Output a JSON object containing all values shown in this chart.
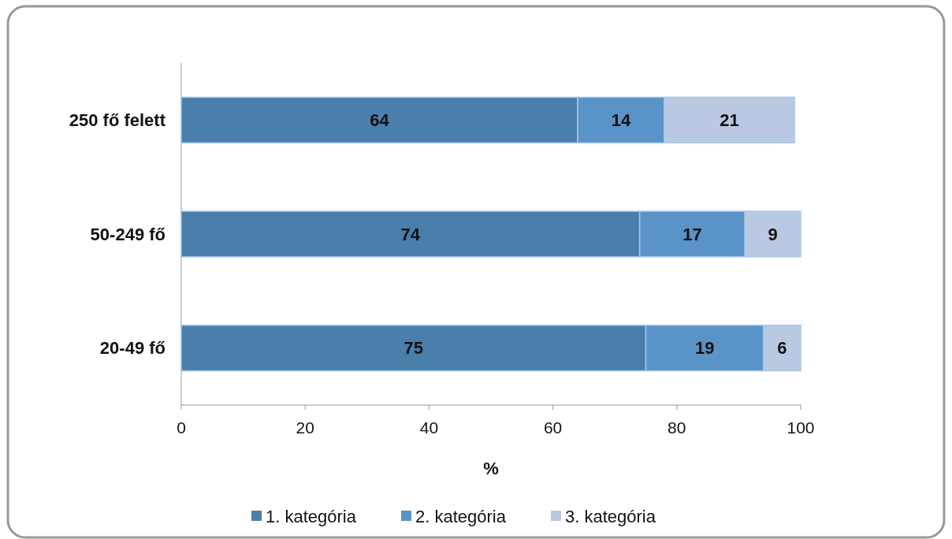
{
  "chart_data": {
    "type": "bar",
    "orientation": "horizontal",
    "stacked": true,
    "xlabel": "%",
    "categories": [
      "250 fő felett",
      "50-249 fő",
      "20-49 fő"
    ],
    "series": [
      {
        "name": "1. kategória",
        "color": "#4a7eab",
        "values": [
          64,
          74,
          75
        ]
      },
      {
        "name": "2. kategória",
        "color": "#5a93c8",
        "values": [
          14,
          17,
          19
        ]
      },
      {
        "name": "3. kategória",
        "color": "#b9c9e1",
        "values": [
          21,
          9,
          6
        ]
      }
    ],
    "xlim": [
      0,
      100
    ],
    "xticks": [
      0,
      20,
      40,
      60,
      80,
      100
    ],
    "data_labels": true,
    "legend": "bottom",
    "grid": false
  }
}
